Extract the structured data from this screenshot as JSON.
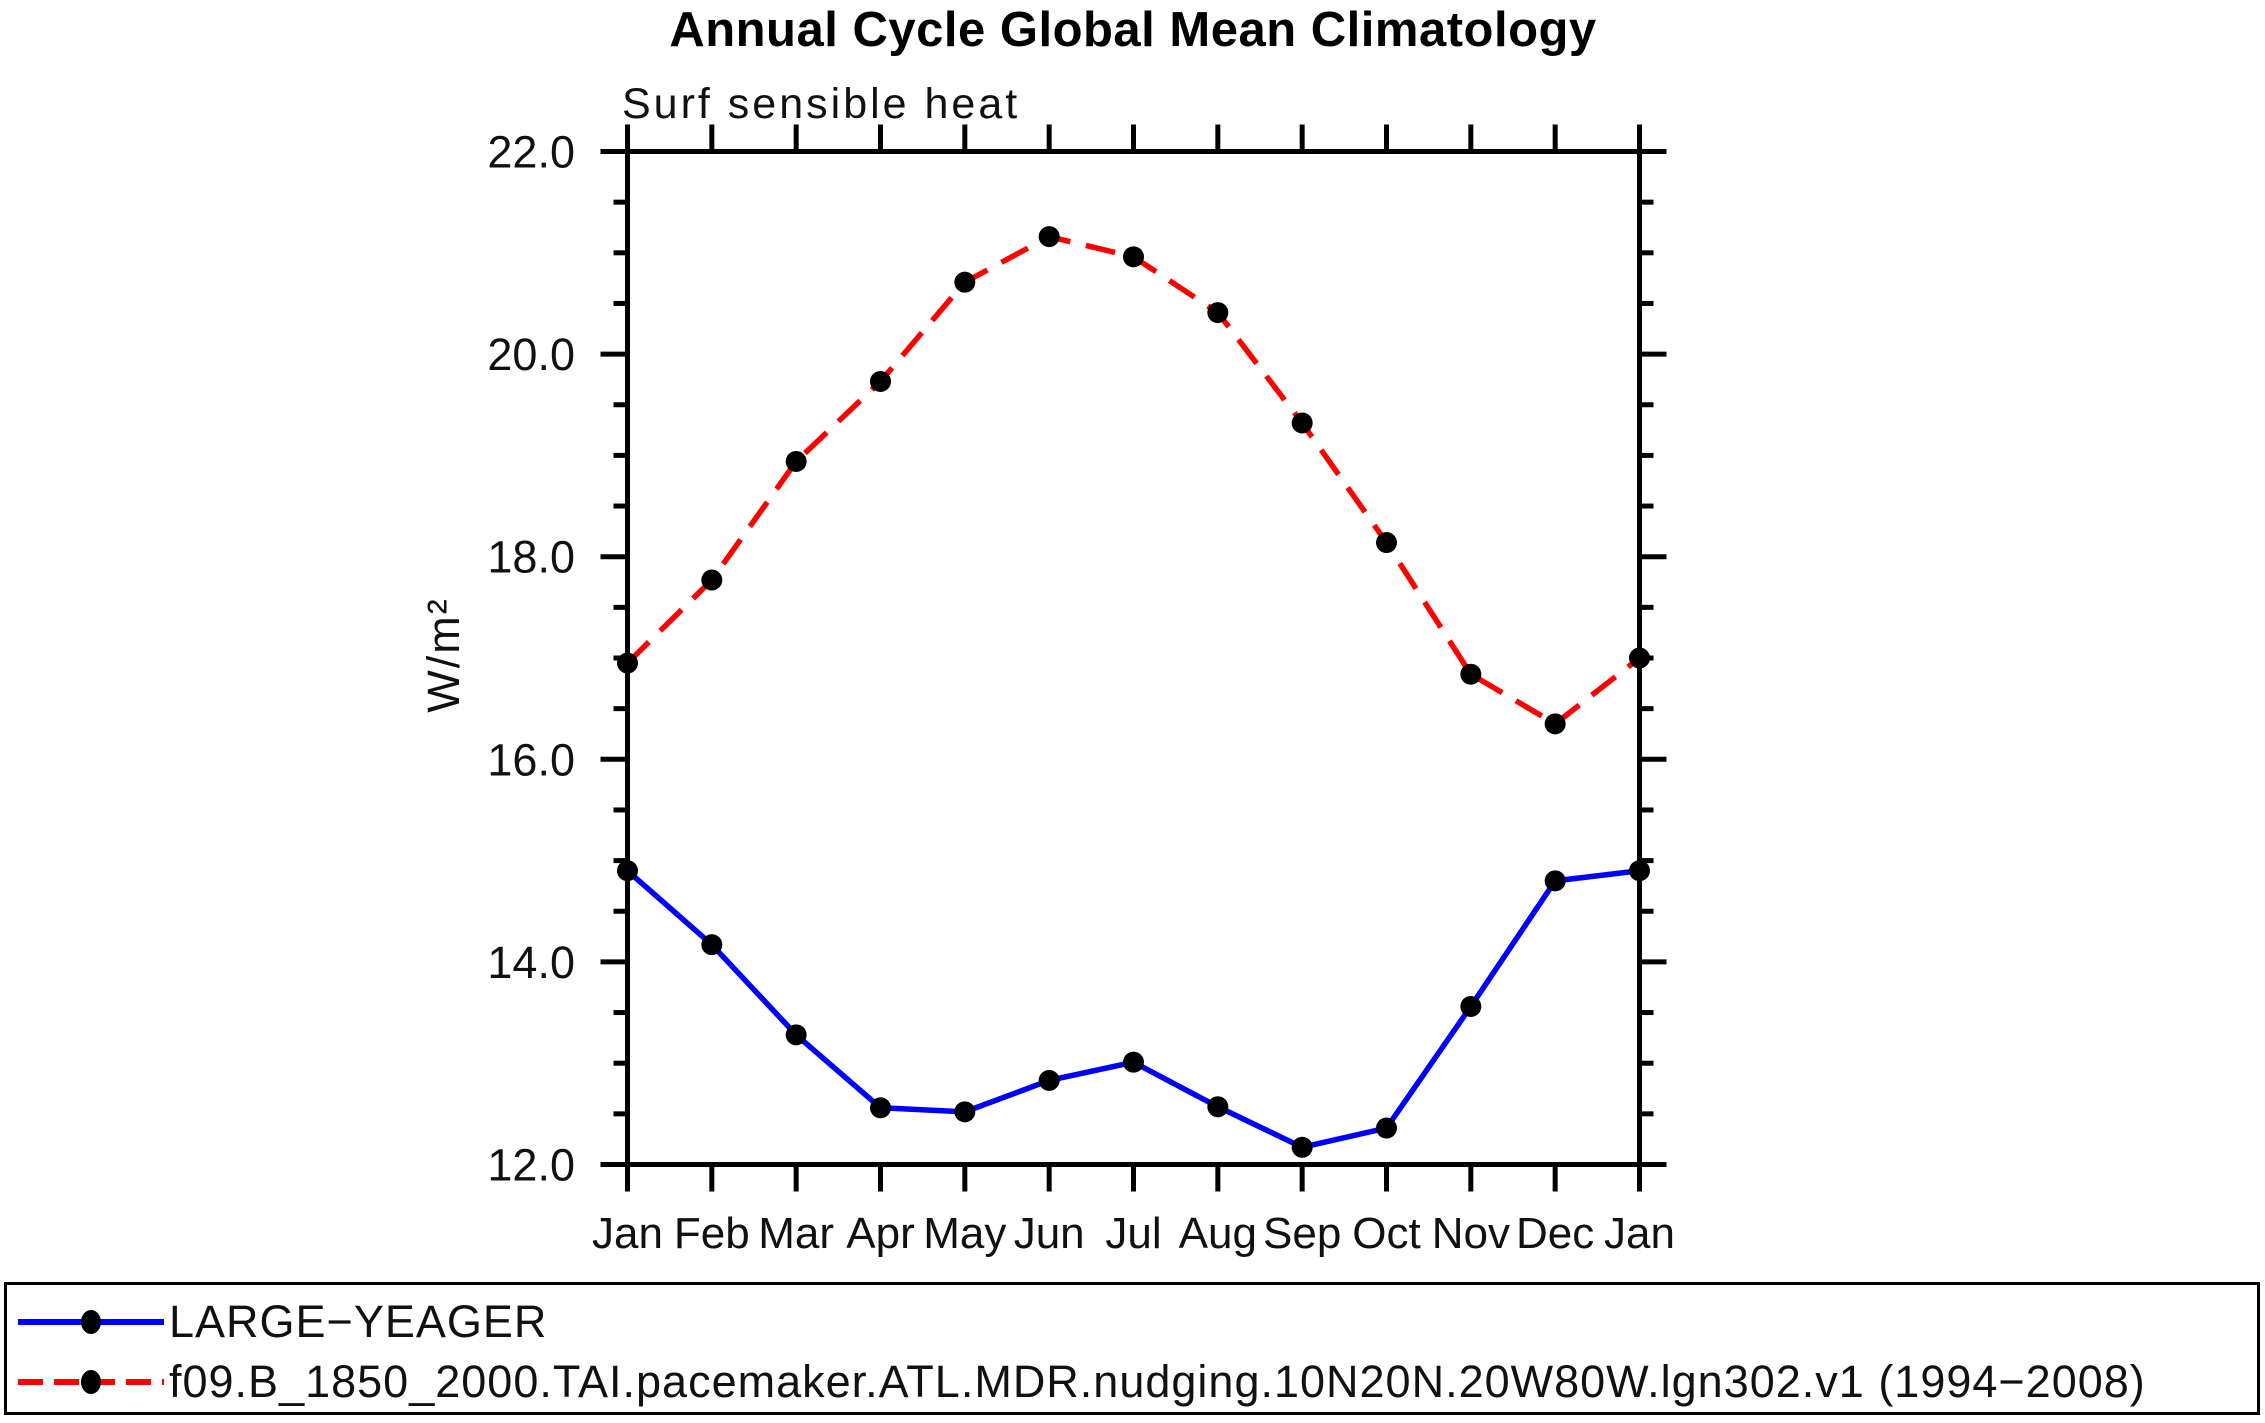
{
  "chart_data": {
    "type": "line",
    "title": "Annual Cycle Global Mean Climatology",
    "subtitle": "Surf sensible heat",
    "xlabel": "",
    "ylabel": "W/m²",
    "categories": [
      "Jan",
      "Feb",
      "Mar",
      "Apr",
      "May",
      "Jun",
      "Jul",
      "Aug",
      "Sep",
      "Oct",
      "Nov",
      "Dec",
      "Jan"
    ],
    "ylim": [
      12.0,
      22.0
    ],
    "ytick_major_values": [
      12.0,
      14.0,
      16.0,
      18.0,
      20.0,
      22.0
    ],
    "ytick_major_labels": [
      "12.0",
      "14.0",
      "16.0",
      "18.0",
      "20.0",
      "22.0"
    ],
    "ytick_minor_step": 0.5,
    "grid": "off",
    "legend_position": "bottom-box",
    "marker": "filled-circle",
    "marker_color": "#000000",
    "axis_color": "#000000",
    "background_color": "#ffffff",
    "series": [
      {
        "name": "LARGE−YEAGER",
        "color": "#0000ff",
        "style": "solid",
        "values": [
          14.9,
          14.17,
          13.28,
          12.56,
          12.52,
          12.83,
          13.01,
          12.57,
          12.17,
          12.36,
          13.56,
          14.8,
          14.9
        ]
      },
      {
        "name": "f09.B_1850_2000.TAI.pacemaker.ATL.MDR.nudging.10N20N.20W80W.lgn302.v1 (1994−2008)",
        "color": "#ff0000",
        "style": "dashed",
        "values": [
          16.95,
          17.77,
          18.94,
          19.73,
          20.71,
          21.16,
          20.96,
          20.41,
          19.32,
          18.14,
          16.84,
          16.35,
          17.0
        ]
      }
    ]
  }
}
